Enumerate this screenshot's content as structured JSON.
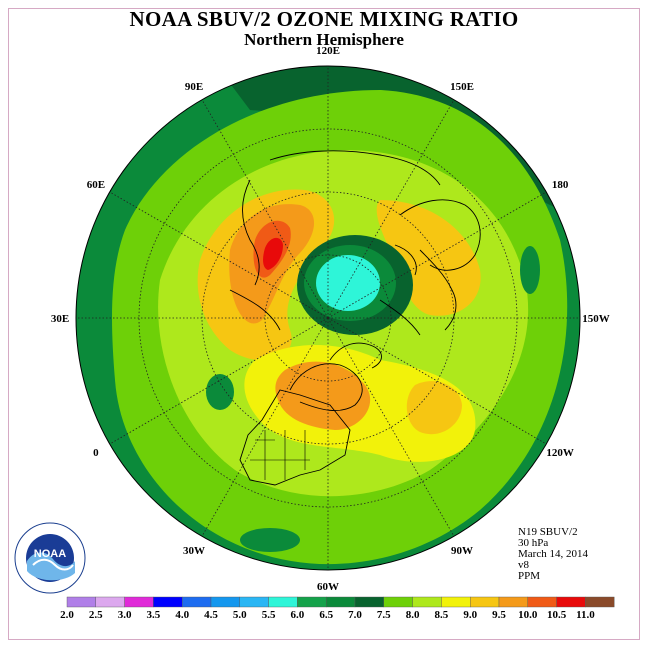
{
  "title": "NOAA SBUV/2 OZONE MIXING RATIO",
  "subtitle": "Northern Hemisphere",
  "longitude_labels": [
    {
      "text": "90E",
      "lon": 90
    },
    {
      "text": "60E",
      "lon": 60
    },
    {
      "text": "30E",
      "lon": 30
    },
    {
      "text": "0",
      "lon": 0
    },
    {
      "text": "30W",
      "lon": -30
    },
    {
      "text": "60W",
      "lon": -60
    },
    {
      "text": "90W",
      "lon": -90
    },
    {
      "text": "120W",
      "lon": -120
    },
    {
      "text": "150W",
      "lon": -150
    },
    {
      "text": "180",
      "lon": 180
    },
    {
      "text": "150E",
      "lon": 150
    },
    {
      "text": "120E",
      "lon": 120
    }
  ],
  "info": {
    "satellite": "N19 SBUV/2",
    "level": "30 hPa",
    "date": "March 14, 2014",
    "version": "v8",
    "units": "PPM"
  },
  "logo": {
    "text": "NOAA"
  },
  "colorbar": {
    "levels": [
      "2.0",
      "2.5",
      "3.0",
      "3.5",
      "4.0",
      "4.5",
      "5.0",
      "5.5",
      "6.0",
      "6.5",
      "7.0",
      "7.5",
      "8.0",
      "8.5",
      "9.0",
      "9.5",
      "10.0",
      "10.5",
      "11.0"
    ],
    "colors": [
      "#b07fe8",
      "#dca8ee",
      "#e02ad8",
      "#0000ff",
      "#1e6cf0",
      "#1497ee",
      "#2ab6f4",
      "#2ef5d8",
      "#14a24a",
      "#0b8a3a",
      "#08632e",
      "#6ed008",
      "#aee81c",
      "#f2f20a",
      "#f6c612",
      "#f49a1a",
      "#f05a16",
      "#e80a0a",
      "#8a4a2a"
    ]
  },
  "map_data": {
    "projection": "north-polar-stereographic",
    "center_lon_pointing_down": -60,
    "fields": [
      {
        "region": "outer ring (equatorial band)",
        "value_ppm": 6.5
      },
      {
        "region": "western Pacific ring",
        "value_ppm": 7.0
      },
      {
        "region": "mid-latitudes",
        "value_ppm": 7.5
      },
      {
        "region": "subpolar belt",
        "value_ppm": 8.0
      },
      {
        "region": "Eurasia / N. America highs",
        "value_ppm": 8.5
      },
      {
        "region": "Siberia high",
        "value_ppm": 9.5
      },
      {
        "region": "Siberia peak",
        "value_ppm": 10.0
      },
      {
        "region": "polar vortex edge",
        "value_ppm": 6.5
      },
      {
        "region": "polar vortex core",
        "value_ppm": 5.5
      }
    ]
  }
}
